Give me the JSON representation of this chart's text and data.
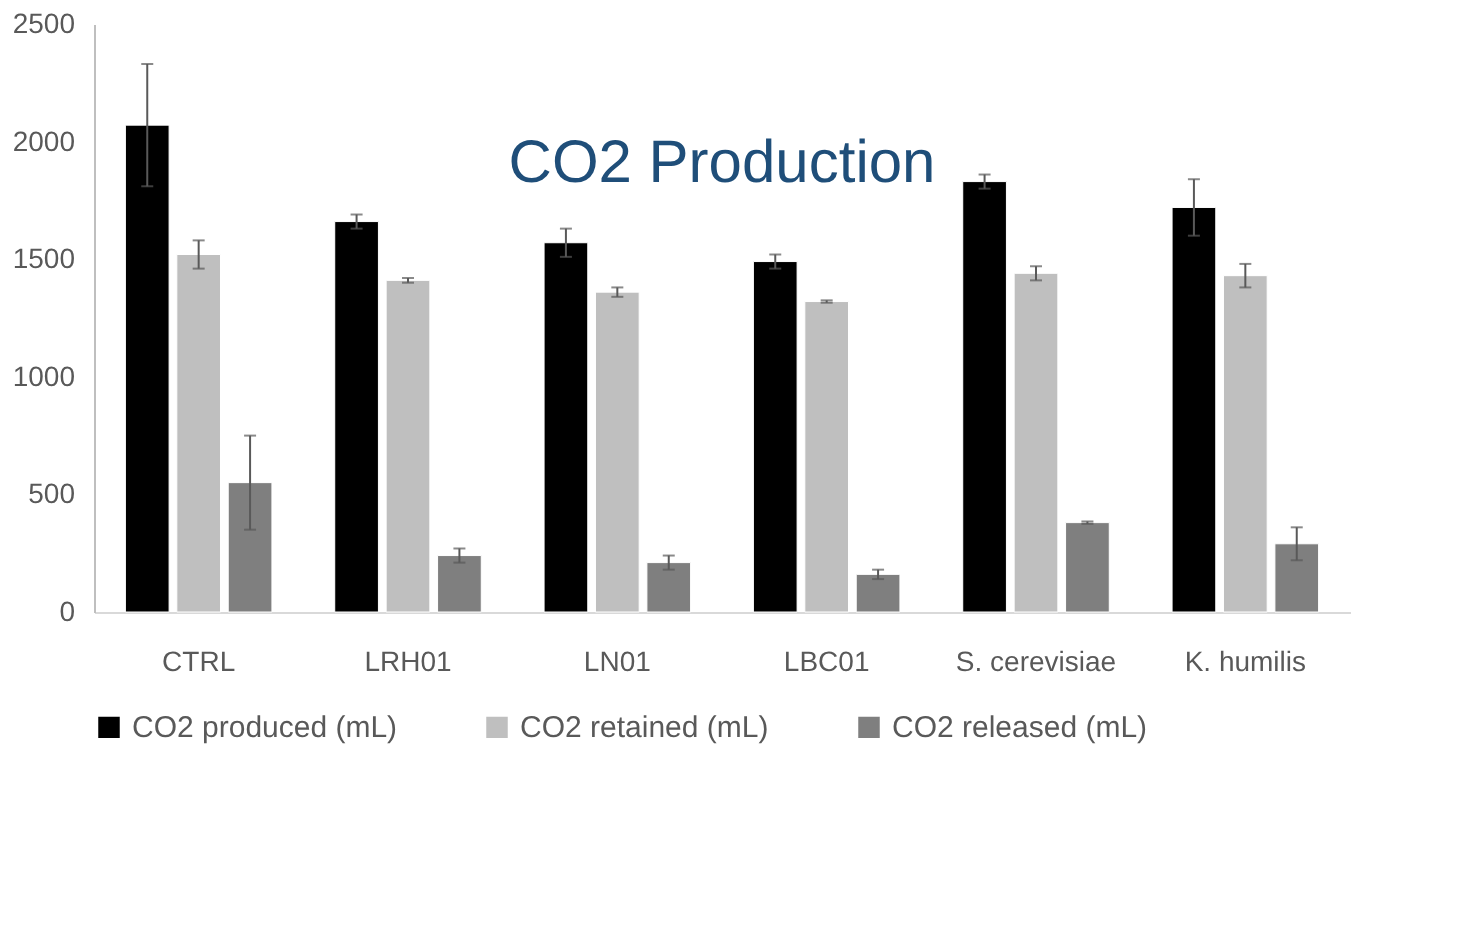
{
  "chart_data": {
    "type": "bar",
    "title": "CO2 Production",
    "categories": [
      "CTRL",
      "LRH01",
      "LN01",
      "LBC01",
      "S. cerevisiae",
      "K. humilis"
    ],
    "series": [
      {
        "name": "CO2 produced (mL)",
        "color": "#000000",
        "values": [
          2070,
          1660,
          1570,
          1490,
          1830,
          1720
        ],
        "errors": [
          260,
          30,
          60,
          30,
          30,
          120
        ]
      },
      {
        "name": "CO2 retained (mL)",
        "color": "#bfbfbf",
        "values": [
          1520,
          1410,
          1360,
          1320,
          1440,
          1430
        ],
        "errors": [
          60,
          10,
          20,
          5,
          30,
          50
        ]
      },
      {
        "name": "CO2 released (mL)",
        "color": "#7f7f7f",
        "values": [
          550,
          240,
          210,
          160,
          380,
          290
        ],
        "errors": [
          200,
          30,
          30,
          20,
          5,
          70
        ]
      }
    ],
    "ylim": [
      0,
      2500
    ],
    "yticks": [
      0,
      500,
      1000,
      1500,
      2000,
      2500
    ],
    "grid": false,
    "legend": "bottom"
  }
}
